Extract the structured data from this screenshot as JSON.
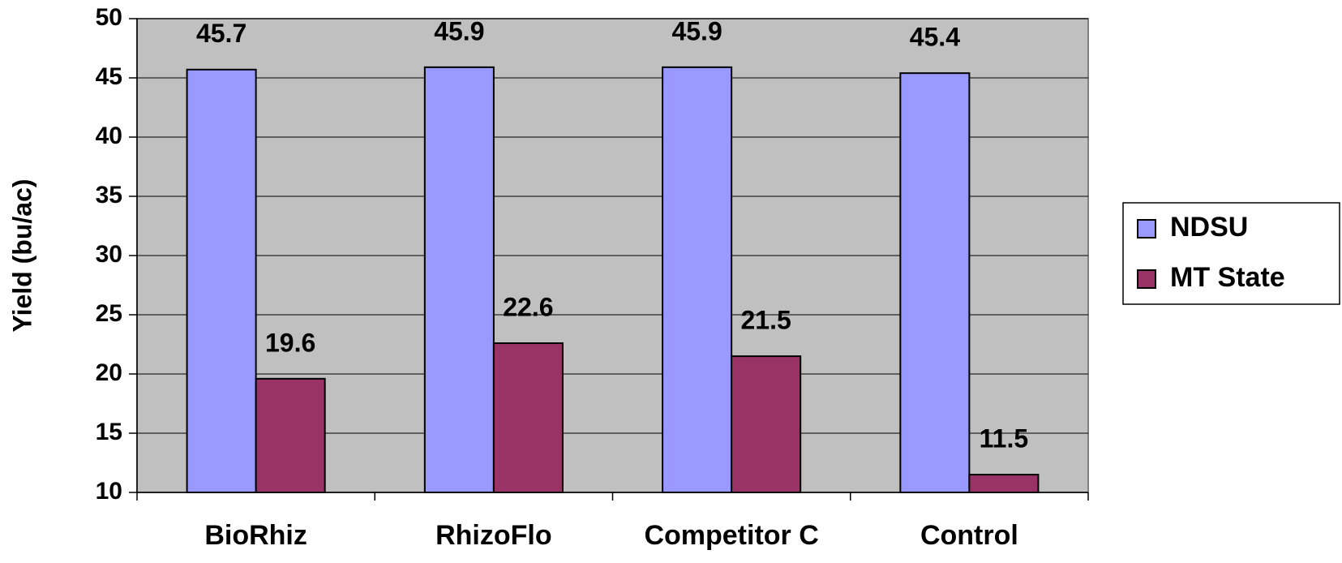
{
  "chart_data": {
    "type": "bar",
    "y_label": "Yield (bu/ac)",
    "categories": [
      "BioRhiz",
      "RhizoFlo",
      "Competitor C",
      "Control"
    ],
    "series": [
      {
        "name": "NDSU",
        "color": "#9999ff",
        "values": [
          45.7,
          45.9,
          45.9,
          45.4
        ]
      },
      {
        "name": "MT State",
        "color": "#993366",
        "values": [
          19.6,
          22.6,
          21.5,
          11.5
        ]
      }
    ],
    "ylim": [
      10,
      50
    ],
    "yticks": [
      10,
      15,
      20,
      25,
      30,
      35,
      40,
      45,
      50
    ],
    "grid": true,
    "plot_background": "#c0c0c0",
    "legend": "right"
  }
}
